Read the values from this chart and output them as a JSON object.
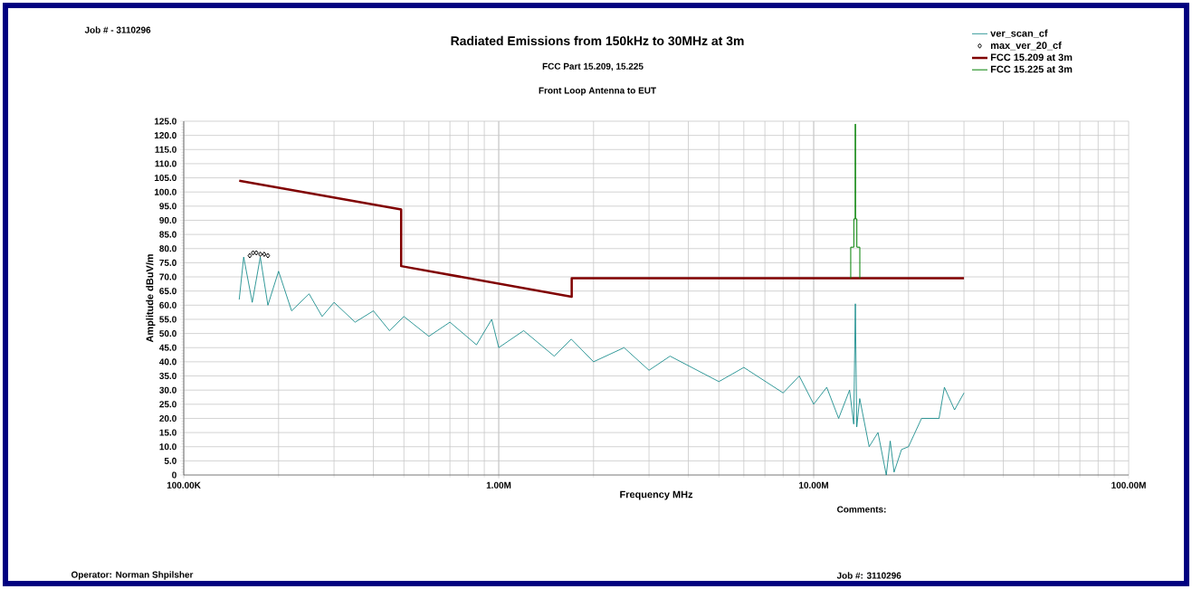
{
  "chart_data": {
    "type": "line",
    "title": "Radiated Emissions from 150kHz to 30MHz at 3m",
    "subtitle": "FCC Part 15.209, 15.225",
    "xlabel": "Frequency MHz",
    "ylabel": "Amplitude dBuV/m",
    "annotations": [
      "Job # - 3110296",
      "Front Loop Antenna to EUT",
      "Comments:",
      "Operator: Norman Shpilsher",
      "Job #: 3110296"
    ],
    "log": "x",
    "grid": true,
    "legend": "top right",
    "xlim": [
      100000,
      100000000
    ],
    "ylim": [
      0,
      125
    ],
    "xticks": [
      {
        "value": 100000,
        "label": "100.00K"
      },
      {
        "value": 1000000,
        "label": "1.00M"
      },
      {
        "value": 10000000,
        "label": "10.00M"
      },
      {
        "value": 100000000,
        "label": "100.00M"
      }
    ],
    "yticks": [
      0,
      {
        "value": 5,
        "label": "5.0"
      },
      {
        "value": 10,
        "label": "10.0"
      },
      {
        "value": 15,
        "label": "15.0"
      },
      {
        "value": 20,
        "label": "20.0"
      },
      {
        "value": 25,
        "label": "25.0"
      },
      {
        "value": 30,
        "label": "30.0"
      },
      {
        "value": 35,
        "label": "35.0"
      },
      {
        "value": 40,
        "label": "40.0"
      },
      {
        "value": 45,
        "label": "45.0"
      },
      {
        "value": 50,
        "label": "50.0"
      },
      {
        "value": 55,
        "label": "55.0"
      },
      {
        "value": 60,
        "label": "60.0"
      },
      {
        "value": 65,
        "label": "65.0"
      },
      {
        "value": 70,
        "label": "70.0"
      },
      {
        "value": 75,
        "label": "75.0"
      },
      {
        "value": 80,
        "label": "80.0"
      },
      {
        "value": 85,
        "label": "85.0"
      },
      {
        "value": 90,
        "label": "90.0"
      },
      {
        "value": 95,
        "label": "95.0"
      },
      {
        "value": 100,
        "label": "100.0"
      },
      {
        "value": 105,
        "label": "105.0"
      },
      {
        "value": 110,
        "label": "110.0"
      },
      {
        "value": 115,
        "label": "115.0"
      },
      {
        "value": 120,
        "label": "120.0"
      },
      {
        "value": 125,
        "label": "125.0"
      }
    ],
    "series": [
      {
        "name": "ver_scan_cf",
        "color": "#008080",
        "x": [
          150000,
          155000,
          165000,
          175000,
          185000,
          200000,
          220000,
          250000,
          275000,
          300000,
          350000,
          400000,
          450000,
          500000,
          600000,
          700000,
          850000,
          950000,
          1000000,
          1200000,
          1500000,
          1700000,
          2000000,
          2500000,
          3000000,
          3500000,
          5000000,
          6000000,
          8000000,
          9000000,
          10000000,
          11000000,
          12000000,
          13000000,
          13400000,
          13560000,
          13700000,
          14000000,
          15000000,
          16000000,
          17000000,
          17500000,
          18000000,
          19000000,
          20000000,
          22000000,
          25000000,
          26000000,
          28000000,
          30000000
        ],
        "values": [
          62,
          77,
          61,
          77,
          60,
          72,
          58,
          64,
          56,
          61,
          54,
          58,
          51,
          56,
          49,
          54,
          46,
          55,
          45,
          51,
          42,
          48,
          40,
          45,
          37,
          42,
          33,
          38,
          29,
          35,
          25,
          31,
          20,
          30,
          18,
          60.5,
          17,
          27,
          10,
          15,
          0,
          12,
          1,
          9,
          10,
          20,
          20,
          31,
          23,
          29
        ]
      },
      {
        "name": "max_ver_20_cf",
        "type": "scatter",
        "marker": "diamond",
        "color": "#000000",
        "x": [
          162000,
          166000,
          170000,
          175000,
          180000,
          185000
        ],
        "values": [
          77.5,
          78.5,
          78.5,
          78,
          78,
          77.5
        ]
      },
      {
        "name": "FCC 15.209 at 3m",
        "color": "#800000",
        "x": [
          150000,
          490000,
          490000,
          1705000,
          1705000,
          30000000
        ],
        "values": [
          104,
          93.8,
          73.8,
          63,
          69.5,
          69.5
        ]
      },
      {
        "name": "FCC 15.225 at 3m",
        "color": "#008000",
        "x": [
          13110000,
          13110000,
          13410000,
          13410000,
          13553000,
          13553000,
          13567000,
          13567000,
          13710000,
          13710000,
          14010000,
          14010000
        ],
        "values": [
          69.5,
          80.5,
          80.5,
          90.5,
          90.5,
          124,
          124,
          90.5,
          90.5,
          80.5,
          80.5,
          69.5
        ]
      }
    ]
  }
}
